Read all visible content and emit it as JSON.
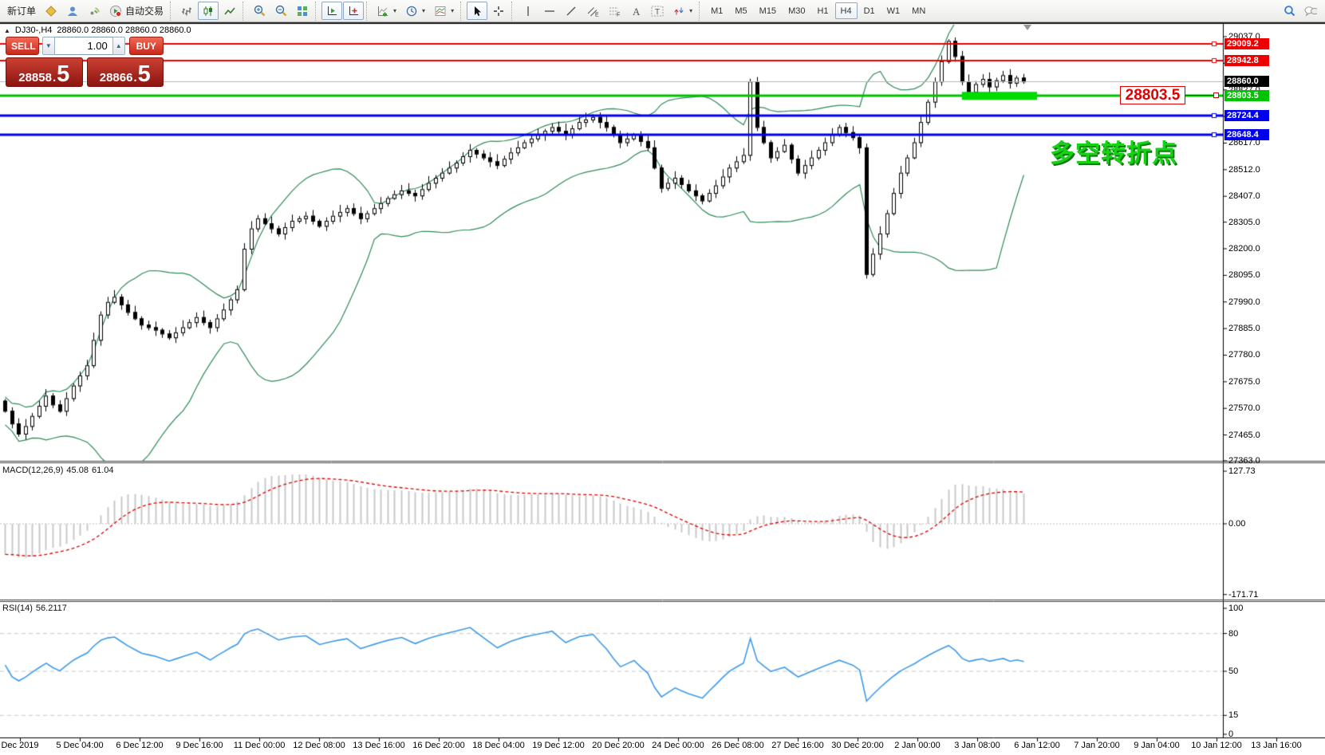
{
  "toolbar": {
    "groups": [
      {
        "items": [
          {
            "name": "new-order",
            "label": "新订单"
          },
          {
            "name": "profiles",
            "icon": "profiles"
          },
          {
            "name": "mql5-community",
            "icon": "community"
          },
          {
            "name": "signals",
            "icon": "signals"
          },
          {
            "name": "autotrading",
            "label": "自动交易",
            "icon": "autotrading"
          }
        ]
      },
      {
        "items": [
          {
            "name": "bar-chart",
            "icon": "bar-chart"
          },
          {
            "name": "candlestick-chart",
            "icon": "candles",
            "active": true
          },
          {
            "name": "line-chart",
            "icon": "line-chart"
          }
        ]
      },
      {
        "items": [
          {
            "name": "zoom-in",
            "icon": "zoom-in"
          },
          {
            "name": "zoom-out",
            "icon": "zoom-out"
          },
          {
            "name": "tile-windows",
            "icon": "tile"
          }
        ]
      },
      {
        "items": [
          {
            "name": "auto-scroll",
            "icon": "auto-scroll",
            "active": true
          },
          {
            "name": "chart-shift",
            "icon": "chart-shift",
            "active": true
          }
        ]
      },
      {
        "items": [
          {
            "name": "indicators",
            "icon": "indicators",
            "caret": true
          },
          {
            "name": "periods",
            "icon": "clock",
            "caret": true
          },
          {
            "name": "templates",
            "icon": "template",
            "caret": true
          }
        ]
      },
      {
        "items": [
          {
            "name": "cursor",
            "icon": "cursor",
            "active": true
          },
          {
            "name": "crosshair",
            "icon": "crosshair"
          }
        ]
      },
      {
        "items": [
          {
            "name": "vertical-line",
            "icon": "vline"
          },
          {
            "name": "horizontal-line",
            "icon": "hline"
          },
          {
            "name": "trendline",
            "icon": "trendline"
          },
          {
            "name": "equidistant-channel",
            "icon": "channel"
          },
          {
            "name": "fibonacci",
            "icon": "fibonacci"
          },
          {
            "name": "text",
            "icon": "text"
          },
          {
            "name": "text-label",
            "icon": "text-label"
          },
          {
            "name": "arrows",
            "icon": "arrows",
            "caret": true
          }
        ]
      }
    ],
    "timeframes": {
      "labels": [
        "M1",
        "M5",
        "M15",
        "M30",
        "H1",
        "H4",
        "D1",
        "W1",
        "MN"
      ],
      "active": "H4"
    },
    "right": [
      {
        "name": "search",
        "icon": "search"
      },
      {
        "name": "chat",
        "icon": "chat"
      }
    ]
  },
  "chart": {
    "title": {
      "toggle": "▲",
      "symbol_period": "DJ30-,H4",
      "ohlc": "28860.0 28860.0 28860.0 28860.0"
    },
    "trade_panel": {
      "sell_label": "SELL",
      "buy_label": "BUY",
      "volume": "1.00",
      "spin_down": "▼",
      "spin_up": "▲",
      "sell_int": "28858",
      "sell_dec": "5",
      "buy_int": "28866",
      "buy_dec": "5",
      "decimal_sep": "."
    },
    "annotation": {
      "text": "多空转折点",
      "color": "#16d116"
    },
    "callout": {
      "text": "28803.5"
    },
    "indicators": {
      "macd": {
        "label": "MACD(12,26,9)",
        "value1": "45.08",
        "value2": "61.04",
        "ticks": [
          {
            "v": 127.73,
            "label": "127.73"
          },
          {
            "v": 0,
            "label": "0.00"
          },
          {
            "v": -171.71,
            "label": "-171.71"
          }
        ]
      },
      "rsi": {
        "label": "RSI(14)",
        "value": "56.2117",
        "ticks": [
          {
            "v": 100,
            "label": "100"
          },
          {
            "v": 80,
            "label": "80"
          },
          {
            "v": 50,
            "label": "50"
          },
          {
            "v": 15,
            "label": "15"
          },
          {
            "v": 0,
            "label": "0"
          }
        ]
      }
    }
  },
  "chart_data": {
    "type": "candlestick",
    "symbol": "DJ30-",
    "period": "H4",
    "title": "DJ30-,H4 28860.0 28860.0 28860.0 28860.0",
    "ylim": [
      27340,
      29085
    ],
    "y_ticks": [
      "29037.0",
      "28932.0",
      "28827.0",
      "28722.0",
      "28617.0",
      "28512.0",
      "28407.0",
      "28305.0",
      "28200.0",
      "28095.0",
      "27990.0",
      "27885.0",
      "27780.0",
      "27675.0",
      "27570.0",
      "27465.0",
      "27363.0"
    ],
    "open_first": 27600,
    "closes": [
      27560,
      27510,
      27470,
      27500,
      27540,
      27580,
      27620,
      27585,
      27560,
      27610,
      27660,
      27700,
      27740,
      27840,
      27940,
      27990,
      28010,
      27980,
      27950,
      27925,
      27900,
      27890,
      27880,
      27865,
      27850,
      27870,
      27890,
      27910,
      27930,
      27910,
      27890,
      27925,
      27960,
      28000,
      28040,
      28200,
      28280,
      28320,
      28300,
      28280,
      28260,
      28285,
      28310,
      28320,
      28330,
      28310,
      28290,
      28310,
      28330,
      28345,
      28360,
      28340,
      28320,
      28340,
      28360,
      28380,
      28400,
      28415,
      28430,
      28420,
      28410,
      28435,
      28460,
      28480,
      28500,
      28520,
      28540,
      28565,
      28590,
      28575,
      28560,
      28545,
      28530,
      28555,
      28580,
      28600,
      28620,
      28635,
      28650,
      28665,
      28680,
      28665,
      28650,
      28675,
      28700,
      28710,
      28720,
      28700,
      28680,
      28650,
      28620,
      28635,
      28650,
      28625,
      28600,
      28520,
      28440,
      28460,
      28480,
      28455,
      28430,
      28410,
      28390,
      28420,
      28450,
      28485,
      28520,
      28545,
      28570,
      28860,
      28680,
      28620,
      28560,
      28585,
      28610,
      28555,
      28500,
      28530,
      28560,
      28590,
      28620,
      28650,
      28680,
      28660,
      28640,
      28600,
      28100,
      28180,
      28260,
      28340,
      28420,
      28500,
      28560,
      28620,
      28700,
      28780,
      28860,
      28940,
      29020,
      28960,
      28860,
      28820,
      28850,
      28870,
      28840,
      28865,
      28885,
      28855,
      28875,
      28860
    ],
    "bollinger": {
      "period": 20,
      "deviation": 2,
      "color": "#2e8b57"
    },
    "hlines": [
      {
        "price": 29009.2,
        "label": "29009.2",
        "color": "#ee0000",
        "width": 2,
        "flag": "red"
      },
      {
        "price": 28942.8,
        "label": "28942.8",
        "color": "#ee0000",
        "width": 2,
        "flag": "red"
      },
      {
        "price": 28860.0,
        "label": "28860.0",
        "color": "#b4b4b4",
        "width": 1,
        "flag": "black",
        "role": "current-price"
      },
      {
        "price": 28803.5,
        "label": "28803.5",
        "color": "#00c000",
        "width": 3,
        "flag": "green"
      },
      {
        "price": 28724.4,
        "label": "28724.4",
        "color": "#0000ee",
        "width": 3,
        "flag": "blue"
      },
      {
        "price": 28648.4,
        "label": "28648.4",
        "color": "#0000ee",
        "width": 3,
        "flag": "blue"
      }
    ],
    "highlight_zone": {
      "price": 28803.5,
      "bar_start": 140,
      "bar_end": 151,
      "color": "#00dc00"
    },
    "x_labels": [
      "Dec 2019",
      "5 Dec 04:00",
      "6 Dec 12:00",
      "9 Dec 16:00",
      "11 Dec 00:00",
      "12 Dec 08:00",
      "13 Dec 16:00",
      "16 Dec 20:00",
      "18 Dec 04:00",
      "19 Dec 12:00",
      "20 Dec 20:00",
      "24 Dec 00:00",
      "26 Dec 08:00",
      "27 Dec 16:00",
      "30 Dec 20:00",
      "2 Jan 00:00",
      "3 Jan 08:00",
      "6 Jan 12:00",
      "7 Jan 20:00",
      "9 Jan 04:00",
      "10 Jan 12:00",
      "13 Jan 16:00"
    ],
    "macd": {
      "params": [
        12,
        26,
        9
      ],
      "last_values": [
        45.08,
        61.04
      ],
      "range": [
        -171.71,
        127.73
      ],
      "histogram_color": "#c8c8c8",
      "signal_color": "#e00000"
    },
    "rsi": {
      "period": 14,
      "last_value": 56.2117,
      "range": [
        0,
        100
      ],
      "levels": [
        80,
        50,
        15
      ],
      "color": "#3d9ae8"
    }
  }
}
